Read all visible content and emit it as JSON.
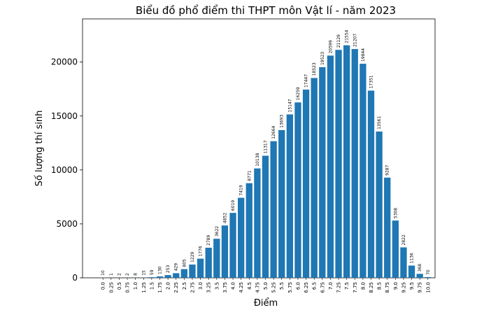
{
  "chart_data": {
    "type": "bar",
    "title": "Biểu đồ phổ điểm thi THPT môn Vật lí - năm 2023",
    "xlabel": "Điểm",
    "ylabel": "Số lượng thí sinh",
    "ylim": [
      0,
      24000
    ],
    "yticks": [
      "0",
      "5000",
      "10000",
      "15000",
      "20000"
    ],
    "yticks_values": [
      0,
      5000,
      10000,
      15000,
      20000
    ],
    "bar_color": "#1f77b4",
    "grid": false,
    "categories": [
      "0.0",
      "0.25",
      "0.5",
      "0.75",
      "1.0",
      "1.25",
      "1.5",
      "1.75",
      "2.0",
      "2.25",
      "2.5",
      "2.75",
      "3.0",
      "3.25",
      "3.5",
      "3.75",
      "4.0",
      "4.25",
      "4.5",
      "4.75",
      "5.0",
      "5.25",
      "5.5",
      "5.75",
      "6.0",
      "6.25",
      "6.5",
      "6.75",
      "7.0",
      "7.25",
      "7.5",
      "7.75",
      "8.0",
      "8.25",
      "8.5",
      "8.75",
      "9.0",
      "9.25",
      "9.5",
      "9.75",
      "10.0"
    ],
    "values": [
      10,
      1,
      2,
      2,
      8,
      15,
      59,
      130,
      253,
      429,
      805,
      1229,
      1776,
      2789,
      3622,
      4852,
      6019,
      7419,
      8771,
      10138,
      11317,
      12664,
      13693,
      15147,
      16259,
      17447,
      18523,
      19523,
      20599,
      21129,
      21554,
      21207,
      19844,
      17351,
      13561,
      9287,
      5308,
      2822,
      1136,
      368,
      70
    ]
  }
}
